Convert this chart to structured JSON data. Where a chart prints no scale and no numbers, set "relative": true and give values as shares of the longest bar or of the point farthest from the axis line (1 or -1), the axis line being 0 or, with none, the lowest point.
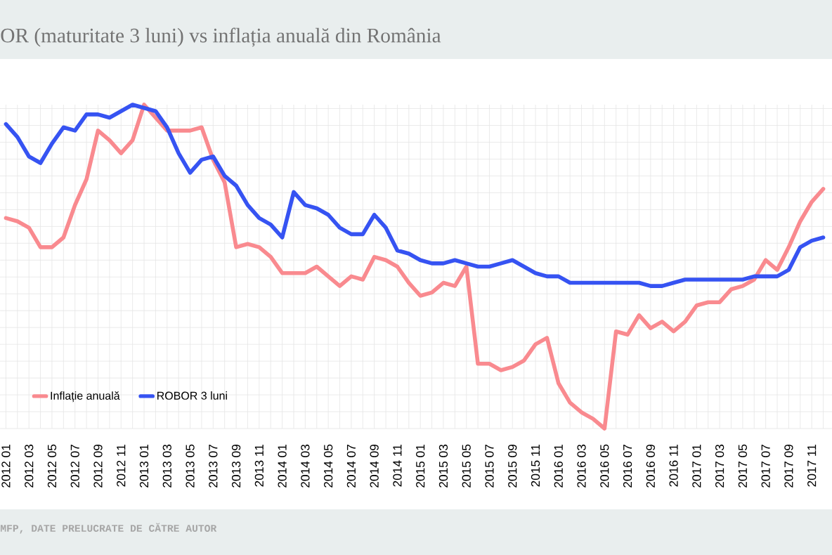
{
  "chart_data": {
    "type": "line",
    "title": "OR (maturitate 3 luni) vs inflația anuală din România",
    "annotations": [
      "MFP, DATE PRELUCRATE DE CĂTRE AUTOR"
    ],
    "categories": [
      "2012 01",
      null,
      "2012 03",
      null,
      "2012 05",
      null,
      "2012 07",
      null,
      "2012 09",
      null,
      "2012 11",
      null,
      "2013 01",
      null,
      "2013 03",
      null,
      "2013 05",
      null,
      "2013 07",
      null,
      "2013 09",
      null,
      "2013 11",
      null,
      "2014 01",
      null,
      "2014 03",
      null,
      "2014 05",
      null,
      "2014 07",
      null,
      "2014 09",
      null,
      "2014 11",
      null,
      "2015 01",
      null,
      "2015 03",
      null,
      "2015 05",
      null,
      "2015 07",
      null,
      "2015 09",
      null,
      "2015 11",
      null,
      "2016 01",
      null,
      "2016 03",
      null,
      "2016 05",
      null,
      "2016 07",
      null,
      "2016 09",
      null,
      "2016 11",
      null,
      "2017 01",
      null,
      "2017 03",
      null,
      "2017 05",
      null,
      "2017 07",
      null,
      "2017 09",
      null,
      "2017 11",
      null
    ],
    "series": [
      {
        "name": "Inflație anuală",
        "color": "#f98a8f",
        "values": [
          0.65,
          0.64,
          0.62,
          0.56,
          0.56,
          0.59,
          0.69,
          0.77,
          0.92,
          0.89,
          0.85,
          0.89,
          1.0,
          0.96,
          0.92,
          0.92,
          0.92,
          0.93,
          0.83,
          0.76,
          0.56,
          0.57,
          0.56,
          0.53,
          0.48,
          0.48,
          0.48,
          0.5,
          0.47,
          0.44,
          0.47,
          0.46,
          0.53,
          0.52,
          0.5,
          0.45,
          0.41,
          0.42,
          0.45,
          0.44,
          0.5,
          0.2,
          0.2,
          0.18,
          0.19,
          0.21,
          0.26,
          0.28,
          0.14,
          0.08,
          0.05,
          0.03,
          0.0,
          0.3,
          0.29,
          0.35,
          0.31,
          0.33,
          0.3,
          0.33,
          0.38,
          0.39,
          0.39,
          0.43,
          0.44,
          0.46,
          0.52,
          0.49,
          0.56,
          0.64,
          0.7,
          0.74
        ]
      },
      {
        "name": "ROBOR 3 luni",
        "color": "#3653f2",
        "values": [
          0.94,
          0.9,
          0.84,
          0.82,
          0.88,
          0.93,
          0.92,
          0.97,
          0.97,
          0.96,
          0.98,
          1.0,
          0.99,
          0.98,
          0.93,
          0.85,
          0.79,
          0.83,
          0.84,
          0.78,
          0.75,
          0.69,
          0.65,
          0.63,
          0.59,
          0.73,
          0.69,
          0.68,
          0.66,
          0.62,
          0.6,
          0.6,
          0.66,
          0.62,
          0.55,
          0.54,
          0.52,
          0.51,
          0.51,
          0.52,
          0.51,
          0.5,
          0.5,
          0.51,
          0.52,
          0.5,
          0.48,
          0.47,
          0.47,
          0.45,
          0.45,
          0.45,
          0.45,
          0.45,
          0.45,
          0.45,
          0.44,
          0.44,
          0.45,
          0.46,
          0.46,
          0.46,
          0.46,
          0.46,
          0.46,
          0.47,
          0.47,
          0.47,
          0.49,
          0.56,
          0.58,
          0.59
        ]
      }
    ],
    "relative": true,
    "grid": true,
    "legend": "bottom left",
    "marker": "none"
  }
}
